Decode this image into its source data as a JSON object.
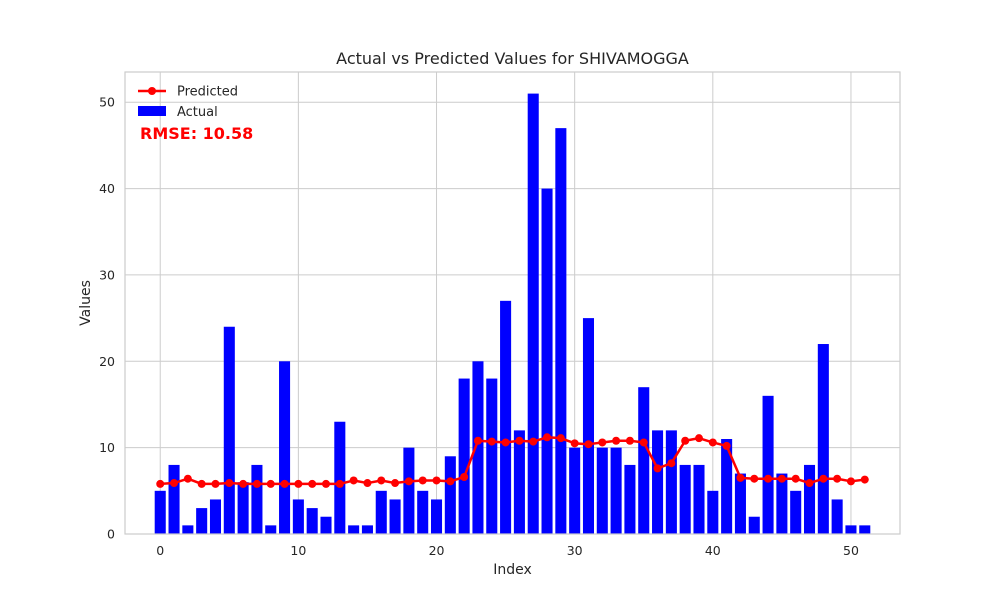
{
  "chart_data": {
    "type": "bar",
    "title": "Actual vs Predicted Values for SHIVAMOGGA",
    "xlabel": "Index",
    "ylabel": "Values",
    "xlim": [
      -2.55,
      53.55
    ],
    "ylim": [
      0,
      53.5
    ],
    "xticks": [
      0,
      10,
      20,
      30,
      40,
      50
    ],
    "yticks": [
      0,
      10,
      20,
      30,
      40,
      50
    ],
    "grid": true,
    "legend_position": "top-left",
    "annotation": "RMSE: 10.58",
    "x": [
      0,
      1,
      2,
      3,
      4,
      5,
      6,
      7,
      8,
      9,
      10,
      11,
      12,
      13,
      14,
      15,
      16,
      17,
      18,
      19,
      20,
      21,
      22,
      23,
      24,
      25,
      26,
      27,
      28,
      29,
      30,
      31,
      32,
      33,
      34,
      35,
      36,
      37,
      38,
      39,
      40,
      41,
      42,
      43,
      44,
      45,
      46,
      47,
      48,
      49,
      50,
      51
    ],
    "series": [
      {
        "name": "Predicted",
        "type": "line",
        "color": "#ff0000",
        "values": [
          5.8,
          5.9,
          6.4,
          5.8,
          5.8,
          5.9,
          5.8,
          5.8,
          5.8,
          5.8,
          5.8,
          5.8,
          5.8,
          5.8,
          6.2,
          5.9,
          6.2,
          5.9,
          6.1,
          6.2,
          6.2,
          6.1,
          6.6,
          10.8,
          10.7,
          10.6,
          10.8,
          10.7,
          11.2,
          11.1,
          10.5,
          10.4,
          10.6,
          10.8,
          10.8,
          10.6,
          7.6,
          8.2,
          10.8,
          11.1,
          10.6,
          10.2,
          6.5,
          6.4,
          6.4,
          6.4,
          6.4,
          5.9,
          6.4,
          6.4,
          6.1,
          6.3
        ]
      },
      {
        "name": "Actual",
        "type": "bar",
        "color": "#0000ff",
        "values": [
          5,
          8,
          1,
          3,
          4,
          24,
          6,
          8,
          1,
          20,
          4,
          3,
          2,
          13,
          1,
          1,
          5,
          4,
          10,
          5,
          4,
          9,
          18,
          20,
          18,
          27,
          12,
          51,
          40,
          47,
          10,
          25,
          10,
          10,
          8,
          17,
          12,
          12,
          8,
          8,
          5,
          11,
          7,
          2,
          16,
          7,
          5,
          8,
          22,
          4,
          1,
          1
        ]
      }
    ]
  }
}
